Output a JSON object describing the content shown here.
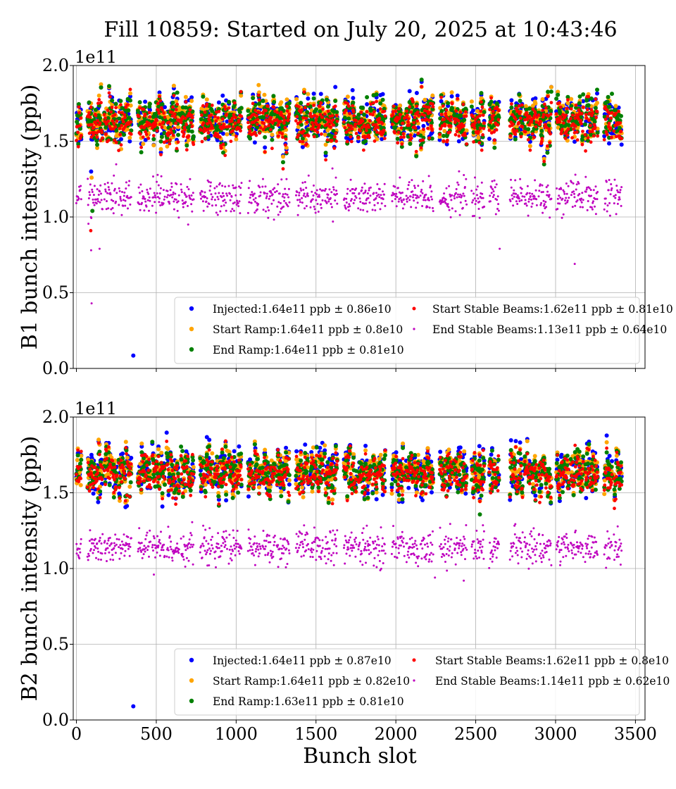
{
  "chart_data": [
    {
      "type": "scatter",
      "title": "Fill 10859: Started on July 20, 2025 at 10:43:46",
      "xlabel": "",
      "ylabel": "B1 bunch intensity (ppb)",
      "y_offset_label": "1e11",
      "xlim": [
        -20,
        3560
      ],
      "ylim": [
        0,
        2.0
      ],
      "y_scale": 100000000000.0,
      "xticks": [
        "0",
        "500",
        "1000",
        "1500",
        "2000",
        "2500",
        "3000",
        "3500"
      ],
      "yticks": [
        "0.0",
        "0.5",
        "1.0",
        "1.5",
        "2.0"
      ],
      "grid": true,
      "legend_position": "lower-right",
      "trains": [
        [
          0,
          30
        ],
        [
          70,
          165
        ],
        [
          175,
          255
        ],
        [
          265,
          345
        ],
        [
          385,
          465
        ],
        [
          475,
          555
        ],
        [
          565,
          645
        ],
        [
          655,
          735
        ],
        [
          775,
          855
        ],
        [
          865,
          945
        ],
        [
          955,
          1035
        ],
        [
          1075,
          1155
        ],
        [
          1165,
          1245
        ],
        [
          1255,
          1335
        ],
        [
          1375,
          1455
        ],
        [
          1465,
          1545
        ],
        [
          1555,
          1635
        ],
        [
          1675,
          1755
        ],
        [
          1765,
          1845
        ],
        [
          1855,
          1935
        ],
        [
          1975,
          2055
        ],
        [
          2065,
          2145
        ],
        [
          2155,
          2235
        ],
        [
          2275,
          2355
        ],
        [
          2365,
          2445
        ],
        [
          2475,
          2555
        ],
        [
          2585,
          2645
        ],
        [
          2715,
          2795
        ],
        [
          2805,
          2885
        ],
        [
          2895,
          2975
        ],
        [
          3005,
          3085
        ],
        [
          3095,
          3175
        ],
        [
          3185,
          3265
        ],
        [
          3305,
          3355
        ],
        [
          3365,
          3415
        ]
      ],
      "series": [
        {
          "name": "Injected:1.64e11 ppb ± 0.86e10",
          "color": "#0000ff",
          "marker": "large",
          "mean": 1.64,
          "std": 0.086,
          "outliers": [
            [
              356,
              0.085
            ],
            [
              92,
              1.3
            ]
          ]
        },
        {
          "name": "Start Ramp:1.64e11 ppb ± 0.8e10",
          "color": "#ffa500",
          "marker": "large",
          "mean": 1.64,
          "std": 0.08,
          "outliers": [
            [
              95,
              1.26
            ]
          ]
        },
        {
          "name": "End Ramp:1.64e11 ppb ± 0.81e10",
          "color": "#008000",
          "marker": "large",
          "mean": 1.64,
          "std": 0.081,
          "outliers": [
            [
              100,
              1.04
            ]
          ]
        },
        {
          "name": "Start Stable Beams:1.62e11 ppb ± 0.81e10",
          "color": "#ff0000",
          "marker": "medium",
          "mean": 1.62,
          "std": 0.081,
          "outliers": [
            [
              90,
              0.91
            ]
          ]
        },
        {
          "name": "End Stable Beams:1.13e11 ppb ± 0.64e10",
          "color": "#bf00bf",
          "marker": "small",
          "mean": 1.13,
          "std": 0.064,
          "outliers": [
            [
              95,
              0.43
            ],
            [
              92,
              0.78
            ],
            [
              145,
              0.79
            ],
            [
              3120,
              0.69
            ],
            [
              2650,
              0.79
            ]
          ]
        }
      ]
    },
    {
      "type": "scatter",
      "title": "",
      "xlabel": "Bunch slot",
      "ylabel": "B2 bunch intensity (ppb)",
      "y_offset_label": "1e11",
      "xlim": [
        -20,
        3560
      ],
      "ylim": [
        0,
        2.0
      ],
      "y_scale": 100000000000.0,
      "xticks": [
        "0",
        "500",
        "1000",
        "1500",
        "2000",
        "2500",
        "3000",
        "3500"
      ],
      "yticks": [
        "0.0",
        "0.5",
        "1.0",
        "1.5",
        "2.0"
      ],
      "grid": true,
      "legend_position": "lower-right",
      "trains": [
        [
          0,
          30
        ],
        [
          70,
          165
        ],
        [
          175,
          255
        ],
        [
          265,
          345
        ],
        [
          385,
          465
        ],
        [
          475,
          555
        ],
        [
          565,
          645
        ],
        [
          655,
          735
        ],
        [
          775,
          855
        ],
        [
          865,
          945
        ],
        [
          955,
          1035
        ],
        [
          1075,
          1155
        ],
        [
          1165,
          1245
        ],
        [
          1255,
          1335
        ],
        [
          1375,
          1455
        ],
        [
          1465,
          1545
        ],
        [
          1555,
          1635
        ],
        [
          1675,
          1755
        ],
        [
          1765,
          1845
        ],
        [
          1855,
          1935
        ],
        [
          1975,
          2055
        ],
        [
          2065,
          2145
        ],
        [
          2155,
          2235
        ],
        [
          2275,
          2355
        ],
        [
          2365,
          2445
        ],
        [
          2475,
          2555
        ],
        [
          2585,
          2645
        ],
        [
          2715,
          2795
        ],
        [
          2805,
          2885
        ],
        [
          2895,
          2975
        ],
        [
          3005,
          3085
        ],
        [
          3095,
          3175
        ],
        [
          3185,
          3265
        ],
        [
          3305,
          3355
        ],
        [
          3365,
          3415
        ]
      ],
      "series": [
        {
          "name": "Injected:1.64e11 ppb ± 0.87e10",
          "color": "#0000ff",
          "marker": "large",
          "mean": 1.64,
          "std": 0.087,
          "outliers": [
            [
              356,
              0.09
            ]
          ]
        },
        {
          "name": "Start Ramp:1.64e11 ppb ± 0.82e10",
          "color": "#ffa500",
          "marker": "large",
          "mean": 1.64,
          "std": 0.082,
          "outliers": []
        },
        {
          "name": "End Ramp:1.63e11 ppb ± 0.81e10",
          "color": "#008000",
          "marker": "large",
          "mean": 1.63,
          "std": 0.081,
          "outliers": []
        },
        {
          "name": "Start Stable Beams:1.62e11 ppb ± 0.8e10",
          "color": "#ff0000",
          "marker": "medium",
          "mean": 1.62,
          "std": 0.08,
          "outliers": []
        },
        {
          "name": "End Stable Beams:1.14e11 ppb ± 0.62e10",
          "color": "#bf00bf",
          "marker": "small",
          "mean": 1.14,
          "std": 0.062,
          "outliers": [
            [
              485,
              0.96
            ],
            [
              2425,
              0.92
            ],
            [
              2245,
              0.94
            ]
          ]
        }
      ]
    }
  ]
}
